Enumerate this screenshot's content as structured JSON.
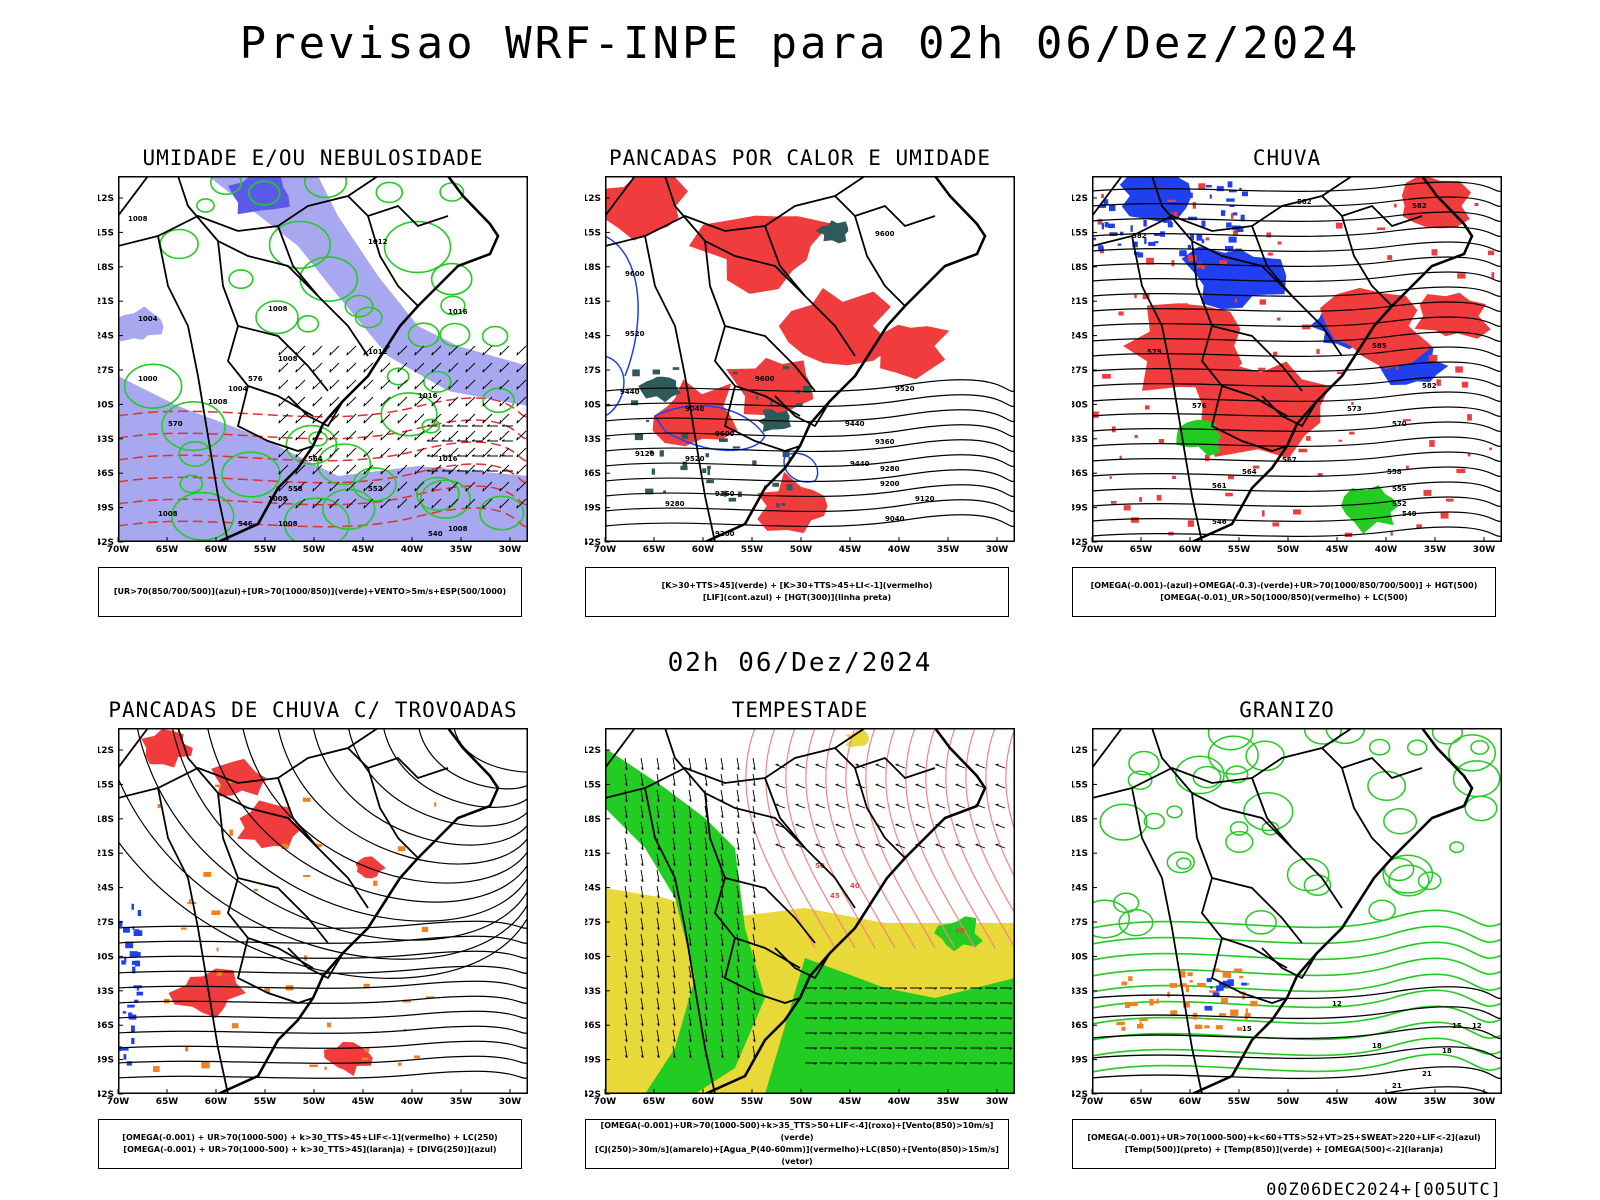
{
  "header": {
    "title": "Previsao WRF-INPE  para 02h 06/Dez/2024",
    "subtitle": "02h 06/Dez/2024",
    "timestamp": "00Z06DEC2024+[005UTC]"
  },
  "axes": {
    "lat_labels": [
      "12S",
      "15S",
      "18S",
      "21S",
      "24S",
      "27S",
      "30S",
      "33S",
      "36S",
      "39S",
      "42S"
    ],
    "lon_labels": [
      "70W",
      "65W",
      "60W",
      "55W",
      "50W",
      "45W",
      "40W",
      "35W",
      "30W"
    ]
  },
  "colors": {
    "red": "#f03c3c",
    "green": "#22cc22",
    "blue": "#2040f0",
    "lightblue": "#a8a8f0",
    "orange": "#f08020",
    "yellow": "#e8d838",
    "darkteal": "#2f5a5a",
    "pink": "#ff8080"
  },
  "panels": [
    {
      "id": "umidade",
      "title": "UMIDADE E/OU NEBULOSIDADE",
      "legend": [
        "[UR>70(850/700/500)](azul)+[UR>70(1000/850)](verde)+VENTO>5m/s+ESP(500/1000)"
      ],
      "contour_labels": [
        "1008",
        "1012",
        "1008",
        "1016",
        "1012",
        "1008",
        "1004",
        "1008",
        "1016",
        "1016",
        "1008",
        "1008",
        "1008",
        "1004",
        "1000",
        "1008",
        "576",
        "570",
        "564",
        "558",
        "552",
        "546",
        "540"
      ]
    },
    {
      "id": "pancadas-calor",
      "title": "PANCADAS POR CALOR E UMIDADE",
      "legend": [
        "[K>30+TTS>45](verde) + [K>30+TTS>45+LI<-1](vermelho)",
        "[LIF](cont.azul) + [HGT(300)](linha preta)"
      ],
      "contour_labels": [
        "9600",
        "9600",
        "9520",
        "9440",
        "9600",
        "9520",
        "9440",
        "9360",
        "9280",
        "9200",
        "9120",
        "9040",
        "9600",
        "9520",
        "9440",
        "9360",
        "9280",
        "9200",
        "9120",
        "9040"
      ]
    },
    {
      "id": "chuva",
      "title": "CHUVA",
      "legend": [
        "[OMEGA(-0.001)-(azul)+OMEGA(-0.3)-(verde)+UR>70(1000/850/700/500)] + HGT(500)",
        "[OMEGA(-0.01)_UR>50(1000/850)(vermelho) + LC(500)"
      ],
      "contour_labels": [
        "582",
        "582",
        "582",
        "585",
        "582",
        "579",
        "576",
        "573",
        "570",
        "567",
        "564",
        "561",
        "558",
        "555",
        "552",
        "549",
        "546"
      ]
    },
    {
      "id": "pancadas-trovoadas",
      "title": "PANCADAS DE CHUVA C/ TROVOADAS",
      "legend": [
        "[OMEGA(-0.001) + UR>70(1000-500) + k>30_TTS>45+LIF<-1](vermelho) + LC(250)",
        "[OMEGA(-0.001) + UR>70(1000-500) + k>30_TTS>45](laranja) + [DIVG(250)](azul)"
      ],
      "contour_labels": []
    },
    {
      "id": "tempestade",
      "title": "TEMPESTADE",
      "legend": [
        "[OMEGA(-0.001)+UR>70(1000-500)+k>35_TTS>50+LIF<-4](roxo)+[Vento(850)>10m/s](verde)",
        "[CJ(250)>30m/s](amarelo)+[Agua_P(40-60mm)](vermelho)+LC(850)+[Vento(850)>15m/s](vetor)"
      ],
      "contour_labels": [
        "40",
        "40",
        "45",
        "50"
      ]
    },
    {
      "id": "granizo",
      "title": "GRANIZO",
      "legend": [
        "[OMEGA(-0.001)+UR>70(1000-500)+k<60+TTS>52+VT>25+SWEAT>220+LIF<-2](azul)",
        "[Temp(500)](preto) + [Temp(850)](verde) + [OMEGA(500)<-2](laranja)"
      ],
      "contour_labels": [
        "12",
        "15",
        "18",
        "21",
        "12",
        "15",
        "18",
        "21"
      ]
    }
  ]
}
